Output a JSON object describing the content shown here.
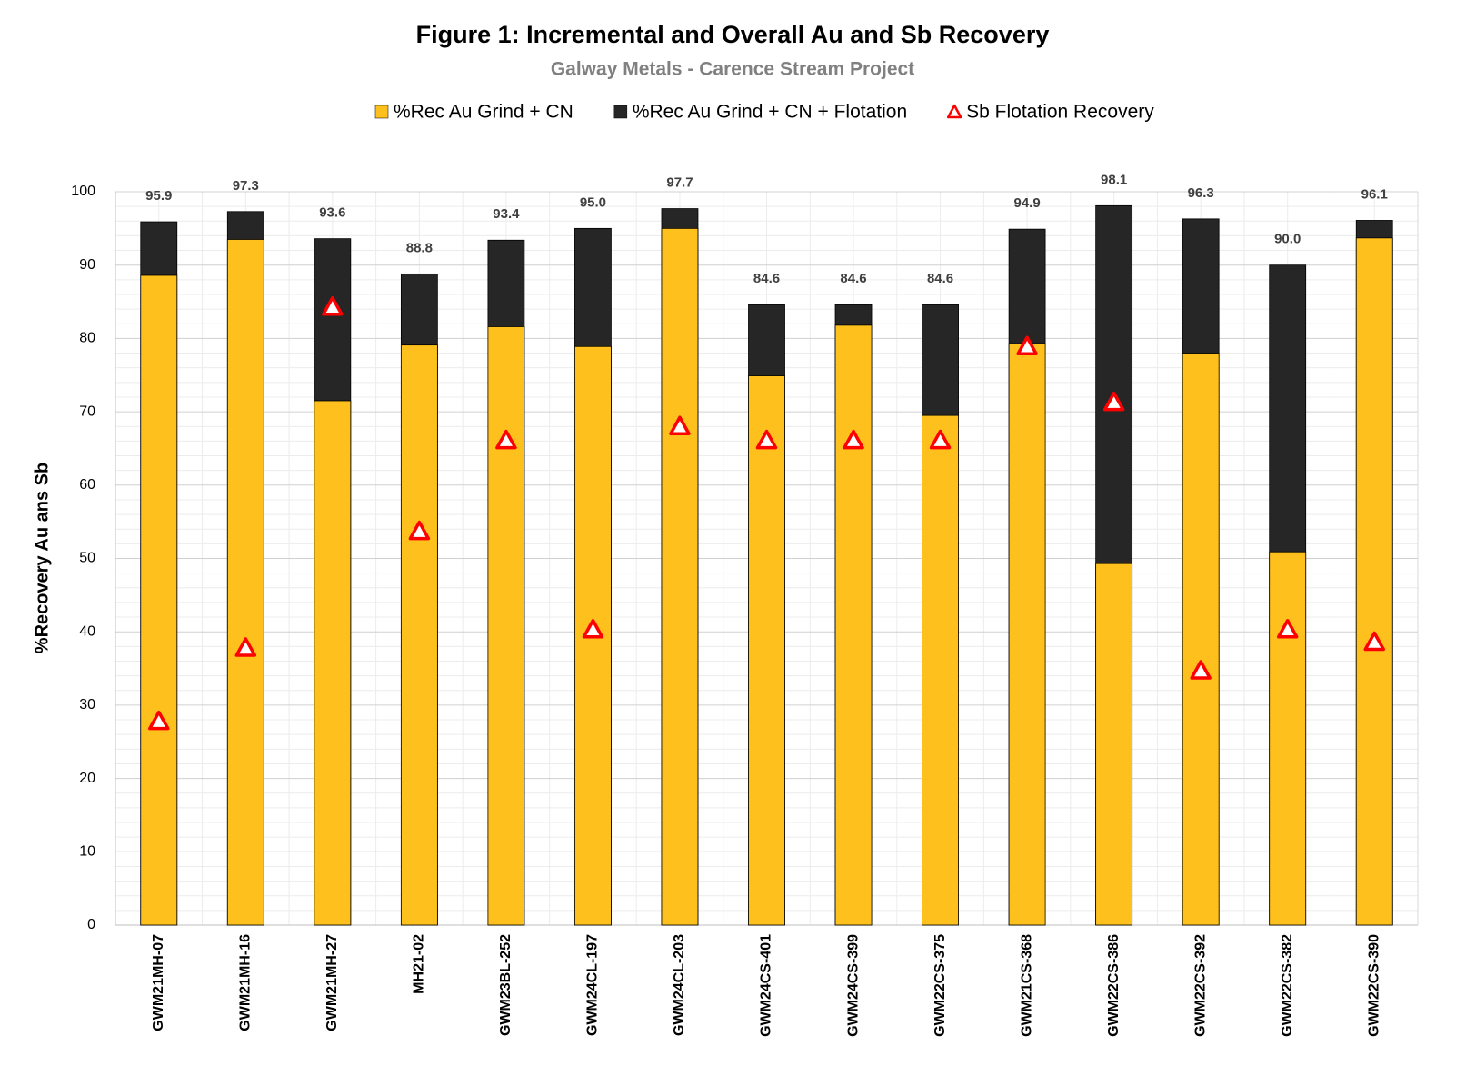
{
  "chart_data": {
    "type": "bar",
    "title": "Figure 1: Incremental and Overall Au and Sb Recovery",
    "subtitle": "Galway Metals - Carence Stream Project",
    "y_label": "%Recovery Au ans Sb",
    "categories": [
      "GWM21MH-07",
      "GWM21MH-16",
      "GWM21MH-27",
      "MH21-02",
      "GWM23BL-252",
      "GWM24CL-197",
      "GWM24CL-203",
      "GWM24CS-401",
      "GWM24CS-399",
      "GWM22CS-375",
      "GWM21CS-368",
      "GWM22CS-386",
      "GWM22CS-392",
      "GWM22CS-382",
      "GWM22CS-390"
    ],
    "series": [
      {
        "name": "%Rec Au Grind + CN",
        "type": "bar",
        "color": "#fdc01c",
        "values": [
          88.6,
          93.5,
          71.5,
          79.1,
          81.6,
          78.9,
          95.0,
          74.9,
          81.8,
          69.5,
          79.3,
          49.3,
          78.0,
          50.9,
          93.7
        ]
      },
      {
        "name": "%Rec Au Grind + CN + Flotation",
        "type": "bar",
        "color": "#262626",
        "values": [
          95.9,
          97.3,
          93.6,
          88.8,
          93.4,
          95.0,
          97.7,
          84.6,
          84.6,
          84.6,
          94.9,
          98.1,
          96.3,
          90.0,
          96.1
        ],
        "value_labels": [
          "95.9",
          "97.3",
          "93.6",
          "88.8",
          "93.4",
          "95.0",
          "97.7",
          "84.6",
          "84.6",
          "84.6",
          "94.9",
          "98.1",
          "96.3",
          "90.0",
          "96.1"
        ]
      },
      {
        "name": "Sb Flotation Recovery",
        "type": "marker",
        "color": "#ff0000",
        "values": [
          27.8,
          37.8,
          84.3,
          53.7,
          66.1,
          40.3,
          68.0,
          66.1,
          66.1,
          66.1,
          78.9,
          71.3,
          34.7,
          40.3,
          38.6
        ]
      }
    ],
    "ylim": [
      0,
      100
    ],
    "yticks": [
      0,
      10,
      20,
      30,
      40,
      50,
      60,
      70,
      80,
      90,
      100
    ],
    "grid": true,
    "minor_grid": true,
    "legend": "top"
  }
}
